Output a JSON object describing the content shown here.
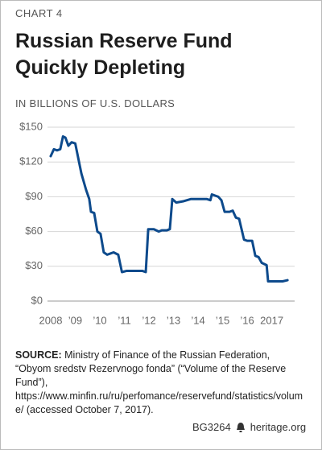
{
  "chart_data": {
    "type": "line",
    "chart_label": "CHART 4",
    "title": "Russian Reserve Fund Quickly Depleting",
    "subtitle": "IN BILLIONS OF U.S. DOLLARS",
    "x": [
      2008.0,
      2008.13,
      2008.26,
      2008.39,
      2008.5,
      2008.6,
      2008.72,
      2008.85,
      2009.0,
      2009.25,
      2009.44,
      2009.57,
      2009.64,
      2009.77,
      2009.9,
      2010.03,
      2010.16,
      2010.3,
      2010.43,
      2010.56,
      2010.75,
      2010.9,
      2011.08,
      2011.2,
      2011.54,
      2011.74,
      2011.87,
      2011.97,
      2012.2,
      2012.4,
      2012.52,
      2012.72,
      2012.85,
      2012.95,
      2013.11,
      2013.38,
      2013.7,
      2014.03,
      2014.36,
      2014.5,
      2014.56,
      2014.82,
      2014.95,
      2015.08,
      2015.28,
      2015.41,
      2015.54,
      2015.67,
      2015.87,
      2016.0,
      2016.2,
      2016.33,
      2016.46,
      2016.59,
      2016.79,
      2016.85,
      2017.11,
      2017.44,
      2017.64
    ],
    "values": [
      125,
      131,
      130,
      131,
      142,
      141,
      134,
      137,
      136,
      110,
      96,
      88,
      77,
      76,
      60,
      58,
      42,
      40,
      41,
      42,
      40,
      25,
      26,
      26,
      26,
      26,
      25,
      62,
      62,
      60,
      61,
      61,
      62,
      88,
      85,
      86,
      88,
      88,
      88,
      87,
      92,
      90,
      87,
      77,
      77,
      78,
      72,
      71,
      53,
      52,
      52,
      39,
      38,
      33,
      31,
      17,
      17,
      17,
      18
    ],
    "color": "#0d4a8c",
    "xlim": [
      2007.87,
      2017.93
    ],
    "xticks": [
      2008,
      {
        "value": 2009,
        "label": "’09"
      },
      {
        "value": 2010,
        "label": "’10"
      },
      {
        "value": 2011,
        "label": "’11"
      },
      {
        "value": 2012,
        "label": "’12"
      },
      {
        "value": 2013,
        "label": "’13"
      },
      {
        "value": 2014,
        "label": "’14"
      },
      {
        "value": 2015,
        "label": "’15"
      },
      {
        "value": 2016,
        "label": "’16"
      },
      2017
    ],
    "ylim": [
      0,
      150
    ],
    "yticks": [
      {
        "value": 0,
        "label": "$0"
      },
      {
        "value": 30,
        "label": "$30"
      },
      {
        "value": 60,
        "label": "$60"
      },
      {
        "value": 90,
        "label": "$90"
      },
      {
        "value": 120,
        "label": "$120"
      },
      {
        "value": 150,
        "label": "$150"
      }
    ],
    "grid": true,
    "source_label": "SOURCE:",
    "source": "Ministry of Finance of the Russian Federation, “Obyom sredstv Rezervnogo fonda” (“Volume of the Reserve Fund”), https://www.minfin.ru/ru/perfomance/reservefund/statistics/volume/ (accessed October 7, 2017).",
    "report_id": "BG3264",
    "site": "heritage.org"
  }
}
